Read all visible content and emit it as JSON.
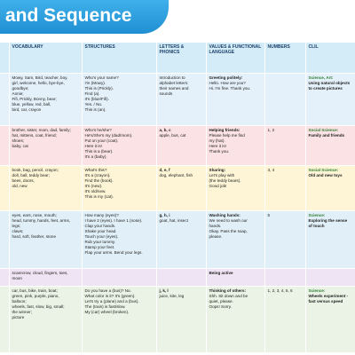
{
  "header": {
    "title": "and Sequence"
  },
  "table": {
    "columns": [
      "VOCABULARY",
      "STRUCTURES",
      "LETTERS & PHONICS",
      "VALUES & FUNCTIONAL LANGUAGE",
      "NUMBERS",
      "CLIL"
    ],
    "rows": [
      {
        "vocabulary": {
          "lines": [
            "Mowy, Sam, Bird, teacher, boy,",
            "girl, welcome, hello, bye-bye,",
            "goodbye;",
            "Annie;",
            "Fifi, Prickly, Bonny, bear;",
            "blue, yellow, red, ball,",
            "bird, car, crayon"
          ]
        },
        "structures": {
          "lines": [
            "Who's your name?",
            "I'm (Mowy).",
            "This is (Prickly).",
            "Find (a).",
            "It's (blue/Fifi).",
            "Yes. / No.",
            "This is (an)."
          ]
        },
        "letters": {
          "lines": [
            "Introduction to",
            "alphabet letters:",
            "their names and",
            "sounds"
          ]
        },
        "values": {
          "heading": "Greeting politely:",
          "lines": [
            "Hello. How are you?",
            "Hi. I'm fine. Thank you."
          ]
        },
        "clil": {
          "heading": "Science, Art:",
          "lines": [
            "Using natural objects",
            "to create pictures"
          ]
        }
      },
      {
        "vocabulary": {
          "lines": [
            "brother, sister, mom, dad, family;",
            "hat, mittens, coat, friend;",
            "shoes;",
            "baby, cat"
          ]
        },
        "structures": {
          "lines": [
            "Who's he/she?",
            "He's/She's my (dad/mom).",
            "Put on your (coat).",
            "Here it is!",
            "This is a (bear).",
            "It's a (baby)."
          ]
        },
        "letters": {
          "heading": "a, b, c",
          "lines": [
            "apple, bus, cat"
          ]
        },
        "values": {
          "heading": "Helping friends:",
          "lines": [
            "Please help me find",
            "my (hat).",
            "Here it is!",
            "Thank you."
          ]
        },
        "numbers": {
          "lines": [
            "1, 2"
          ]
        },
        "clil": {
          "heading": "Social Science:",
          "lines": [
            "Family and friends"
          ]
        }
      },
      {
        "vocabulary": {
          "lines": [
            "book, bag, pencil, crayon;",
            "doll, ball, teddy bear;",
            "bees, doors,",
            "old, new"
          ]
        },
        "structures": {
          "lines": [
            "What's this?",
            "It's a (crayon).",
            "Find the (book).",
            "It's (new).",
            "It's old/new.",
            "This is my (cat)."
          ]
        },
        "letters": {
          "heading": "d, e, f",
          "lines": [
            "dog, elephant, fish"
          ]
        },
        "values": {
          "heading": "Sharing:",
          "lines": [
            "Let's play with",
            "(the teddy bears).",
            "Good job!"
          ]
        },
        "numbers": {
          "lines": [
            "3, 4"
          ]
        },
        "clil": {
          "heading": "Social Science:",
          "lines": [
            "Old and new toys"
          ]
        }
      },
      {
        "vocabulary": {
          "lines": [
            "eyes, ears, nose, mouth;",
            "head, tummy, hands, feet, arms,",
            "legs;",
            "claws;",
            "hard, soft, feather, stone"
          ]
        },
        "structures": {
          "lines": [
            "How many (eyes)?",
            "I have 2 (eyes). I have 1 (nose).",
            "Clap your hands.",
            "Shake your head.",
            "Touch your (eyes).",
            "Rub your tummy.",
            "Stamp your feet.",
            "Flap your arms. Bend your legs."
          ]
        },
        "letters": {
          "heading": "g, h, i",
          "lines": [
            "goat, hat, insect"
          ]
        },
        "values": {
          "heading": "Washing hands:",
          "lines": [
            "We need to wash our",
            "hands.",
            "Okay. Pass the soap,",
            "please."
          ]
        },
        "numbers": {
          "lines": [
            "5"
          ]
        },
        "clil": {
          "heading": "Science:",
          "lines": [
            "Exploring the sense",
            "of touch"
          ]
        }
      },
      {
        "vocabulary": {
          "lines": [
            "scarecrow, cloud, fingers, toes,",
            "moon"
          ]
        },
        "values": {
          "heading": "Being active"
        }
      },
      {
        "vocabulary": {
          "lines": [
            "car, bus, bike, train, boat;",
            "green, pink, purple, piano,",
            "balloon;",
            "wheels, fast, slow, big, small;",
            "the winner;",
            "picture"
          ]
        },
        "structures": {
          "lines": [
            "Do you have a (bus)? No.",
            "What color is it? It's (green).",
            "Let's try a (plane) and a (bus).",
            "The (train) is fast/slow.",
            "My (car) wheel (broken)."
          ]
        },
        "letters": {
          "heading": "j, k, l",
          "lines": [
            "juice, kite, leg"
          ]
        },
        "values": {
          "heading": "Thinking of others:",
          "lines": [
            "Shh. Sit down and be",
            "quiet, please.",
            "Oops! Sorry."
          ]
        },
        "numbers": {
          "lines": [
            "1, 2, 3, 4, 5, 6"
          ]
        },
        "clil": {
          "heading": "Science:",
          "lines": [
            "Wheels experiment -",
            "fast versus speed"
          ]
        }
      }
    ]
  }
}
